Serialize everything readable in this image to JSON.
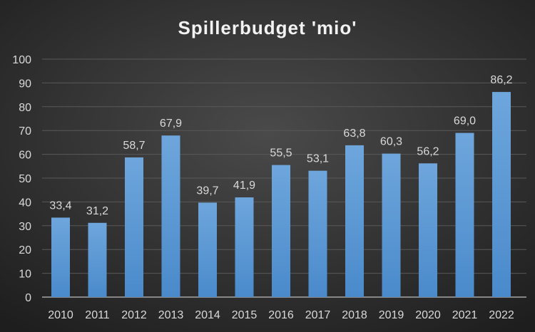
{
  "chart_data": {
    "type": "bar",
    "title": "Spillerbudget 'mio'",
    "xlabel": "",
    "ylabel": "",
    "categories": [
      "2010",
      "2011",
      "2012",
      "2013",
      "2014",
      "2015",
      "2016",
      "2017",
      "2018",
      "2019",
      "2020",
      "2021",
      "2022"
    ],
    "values": [
      33.4,
      31.2,
      58.7,
      67.9,
      39.7,
      41.9,
      55.5,
      53.1,
      63.8,
      60.3,
      56.2,
      69.0,
      86.2
    ],
    "data_labels": [
      "33,4",
      "31,2",
      "58,7",
      "67,9",
      "39,7",
      "41,9",
      "55,5",
      "53,1",
      "63,8",
      "60,3",
      "56,2",
      "69,0",
      "86,2"
    ],
    "ylim": [
      0,
      100
    ],
    "yticks": [
      "0",
      "10",
      "20",
      "30",
      "40",
      "50",
      "60",
      "70",
      "80",
      "90",
      "100"
    ],
    "grid": true,
    "legend": "none",
    "colors": {
      "bar_top": "#6ea6dc",
      "bar_bottom": "#4a8acb",
      "text": "#d9d9d9",
      "grid": "#595959"
    }
  }
}
